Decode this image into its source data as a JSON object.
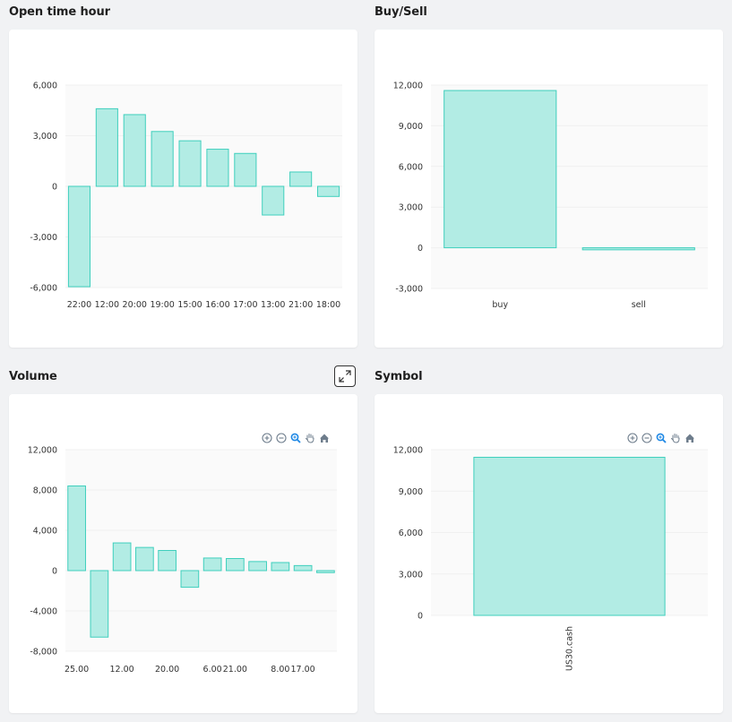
{
  "panels": {
    "open_time": {
      "title": "Open time hour"
    },
    "buy_sell": {
      "title": "Buy/Sell"
    },
    "volume": {
      "title": "Volume"
    },
    "symbol": {
      "title": "Symbol"
    }
  },
  "colors": {
    "bar_fill": "#b2ece4",
    "bar_stroke": "#3fcfbd",
    "grid": "#f0f0f0",
    "plot_bg": "#fafafa",
    "toolbar_icon": "#6e7d8c",
    "toolbar_active": "#1e88e5"
  },
  "toolbar_icons": [
    "zoom-in-icon",
    "zoom-out-icon",
    "magnifier-icon",
    "pan-hand-icon",
    "home-icon"
  ],
  "chart_data": [
    {
      "id": "open_time",
      "type": "bar",
      "title": "Open time hour",
      "categories": [
        "22:00",
        "12:00",
        "20:00",
        "19:00",
        "15:00",
        "16:00",
        "17:00",
        "13:00",
        "21:00",
        "18:00"
      ],
      "values": [
        -5950,
        4600,
        4250,
        3250,
        2700,
        2200,
        1950,
        -1700,
        850,
        -600
      ],
      "ylim": [
        -6000,
        6000
      ],
      "yticks": [
        6000,
        3000,
        0,
        -3000,
        -6000
      ],
      "ytick_labels": [
        "6,000",
        "3,000",
        "0",
        "-3,000",
        "-6,000"
      ],
      "grid": true
    },
    {
      "id": "buy_sell",
      "type": "bar",
      "title": "Buy/Sell",
      "categories": [
        "buy",
        "sell"
      ],
      "values": [
        11600,
        -150
      ],
      "ylim": [
        -3000,
        12000
      ],
      "yticks": [
        12000,
        9000,
        6000,
        3000,
        0,
        -3000
      ],
      "ytick_labels": [
        "12,000",
        "9,000",
        "6,000",
        "3,000",
        "0",
        "-3,000"
      ],
      "grid": true
    },
    {
      "id": "volume",
      "type": "bar",
      "title": "Volume",
      "categories": [
        "25.00",
        "",
        "12.00",
        "",
        "20.00",
        "",
        "6.00",
        "21.00",
        "",
        "8.00",
        "17.00",
        ""
      ],
      "values": [
        8400,
        -6600,
        2750,
        2300,
        2000,
        -1650,
        1250,
        1200,
        900,
        800,
        500,
        -200
      ],
      "ylim": [
        -8000,
        12000
      ],
      "yticks": [
        12000,
        8000,
        4000,
        0,
        -4000,
        -8000
      ],
      "ytick_labels": [
        "12,000",
        "8,000",
        "4,000",
        "0",
        "-4,000",
        "-8,000"
      ],
      "grid": true
    },
    {
      "id": "symbol",
      "type": "bar",
      "title": "Symbol",
      "categories": [
        "US30.cash"
      ],
      "values": [
        11450
      ],
      "ylim": [
        0,
        12000
      ],
      "yticks": [
        12000,
        9000,
        6000,
        3000,
        0
      ],
      "ytick_labels": [
        "12,000",
        "9,000",
        "6,000",
        "3,000",
        "0"
      ],
      "grid": true
    }
  ]
}
